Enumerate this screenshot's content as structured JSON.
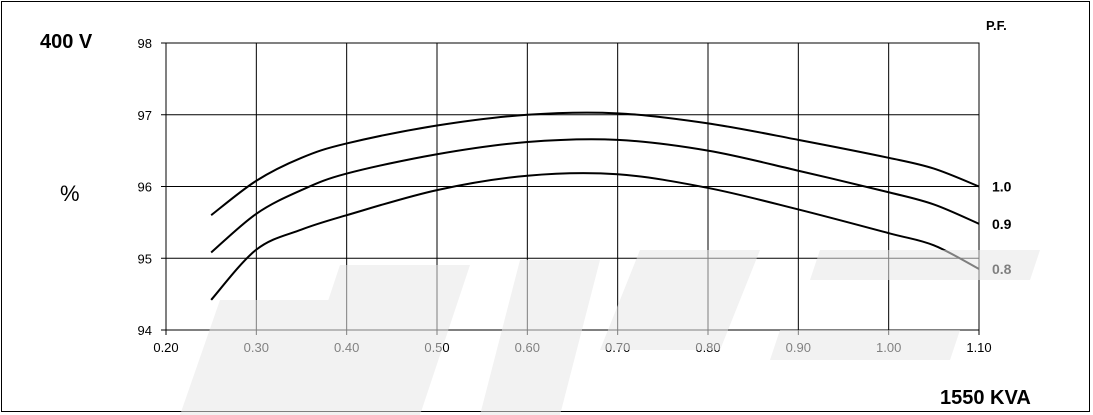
{
  "header": {
    "voltage": "400 V",
    "percent_symbol": "%",
    "power_factor_title": "P.F.",
    "rating": "1550 KVA"
  },
  "chart_data": {
    "type": "line",
    "title": "",
    "xlabel": "1550 KVA",
    "ylabel": "%",
    "xlim": [
      0.2,
      1.1
    ],
    "ylim": [
      94,
      98
    ],
    "x_ticks": [
      "0.20",
      "0.30",
      "0.40",
      "0.50",
      "0.60",
      "0.70",
      "0.80",
      "0.90",
      "1.00",
      "1.10"
    ],
    "y_ticks": [
      "94",
      "95",
      "96",
      "97",
      "98"
    ],
    "grid": true,
    "legend_title": "P.F.",
    "legend_position": "right-end-of-lines",
    "series": [
      {
        "name": "1.0",
        "x": [
          0.25,
          0.3,
          0.35,
          0.4,
          0.5,
          0.6,
          0.7,
          0.8,
          0.9,
          1.0,
          1.05,
          1.1
        ],
        "values": [
          95.6,
          96.08,
          96.4,
          96.6,
          96.85,
          97.0,
          97.02,
          96.88,
          96.65,
          96.4,
          96.25,
          96.0
        ]
      },
      {
        "name": "0.9",
        "x": [
          0.25,
          0.3,
          0.35,
          0.4,
          0.5,
          0.6,
          0.7,
          0.8,
          0.9,
          1.0,
          1.05,
          1.1
        ],
        "values": [
          95.08,
          95.62,
          95.95,
          96.18,
          96.45,
          96.62,
          96.65,
          96.5,
          96.22,
          95.92,
          95.75,
          95.48
        ]
      },
      {
        "name": "0.8",
        "x": [
          0.25,
          0.3,
          0.35,
          0.4,
          0.5,
          0.6,
          0.7,
          0.8,
          0.9,
          1.0,
          1.05,
          1.1
        ],
        "values": [
          94.42,
          95.12,
          95.4,
          95.6,
          95.95,
          96.15,
          96.17,
          95.98,
          95.68,
          95.35,
          95.18,
          94.85
        ]
      }
    ]
  }
}
